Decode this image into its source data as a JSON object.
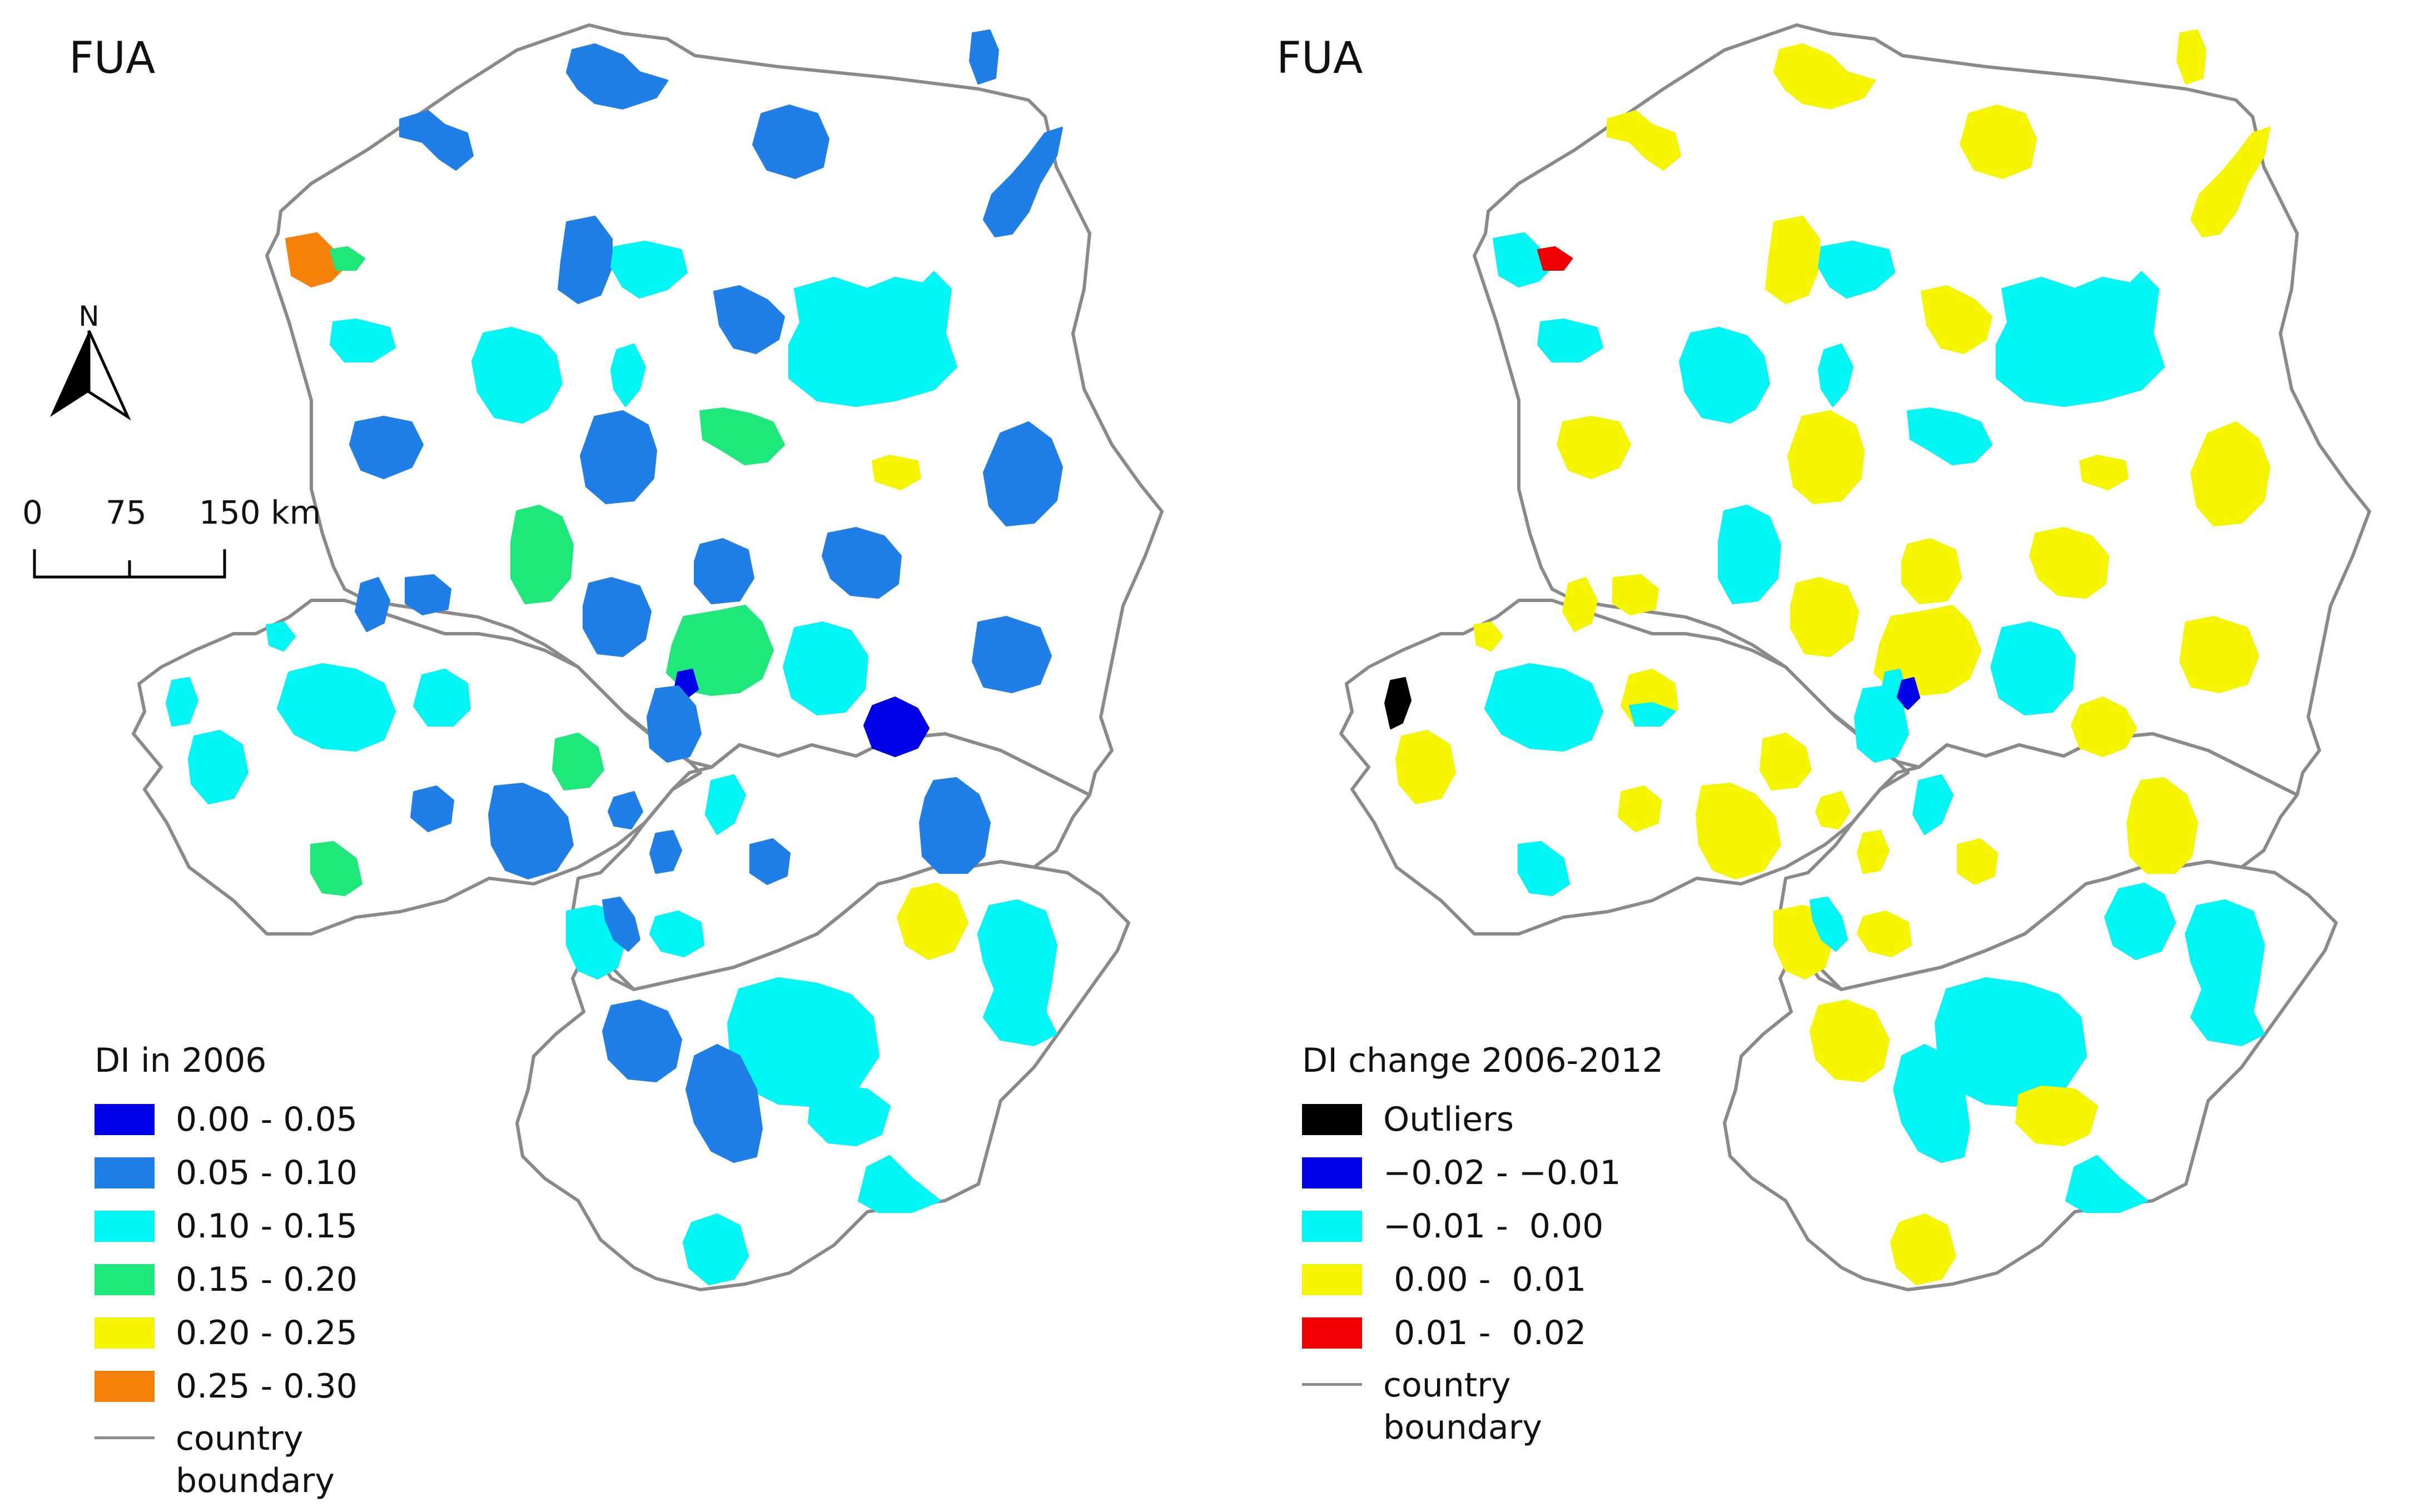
{
  "panels": [
    {
      "title": "FUA",
      "legend": {
        "title": "DI in 2006",
        "items": [
          {
            "label": "0.00 - 0.05",
            "color": "#0000e6"
          },
          {
            "label": "0.05 - 0.10",
            "color": "#1f7fe6"
          },
          {
            "label": "0.10 - 0.15",
            "color": "#00f5f5"
          },
          {
            "label": "0.15 - 0.20",
            "color": "#1ee87a"
          },
          {
            "label": "0.20 - 0.25",
            "color": "#f5f500"
          },
          {
            "label": "0.25 - 0.30",
            "color": "#f5800a"
          }
        ],
        "boundary_label": "country boundary"
      },
      "north_label": "N",
      "scale": {
        "labels": [
          "0",
          "75",
          "150 km"
        ]
      }
    },
    {
      "title": "FUA",
      "legend": {
        "title": "DI change 2006-2012",
        "items": [
          {
            "label": "Outliers",
            "color": "#000000"
          },
          {
            "label": "−0.02 - −0.01",
            "color": "#0000e6"
          },
          {
            "label": "−0.01 -  0.00",
            "color": "#00f5f5"
          },
          {
            "label": " 0.00 -  0.01",
            "color": "#f5f500"
          },
          {
            "label": " 0.01 -  0.02",
            "color": "#f00000"
          }
        ],
        "boundary_label": "country boundary"
      }
    }
  ],
  "colors": {
    "boundary": "#8a8a8a"
  }
}
